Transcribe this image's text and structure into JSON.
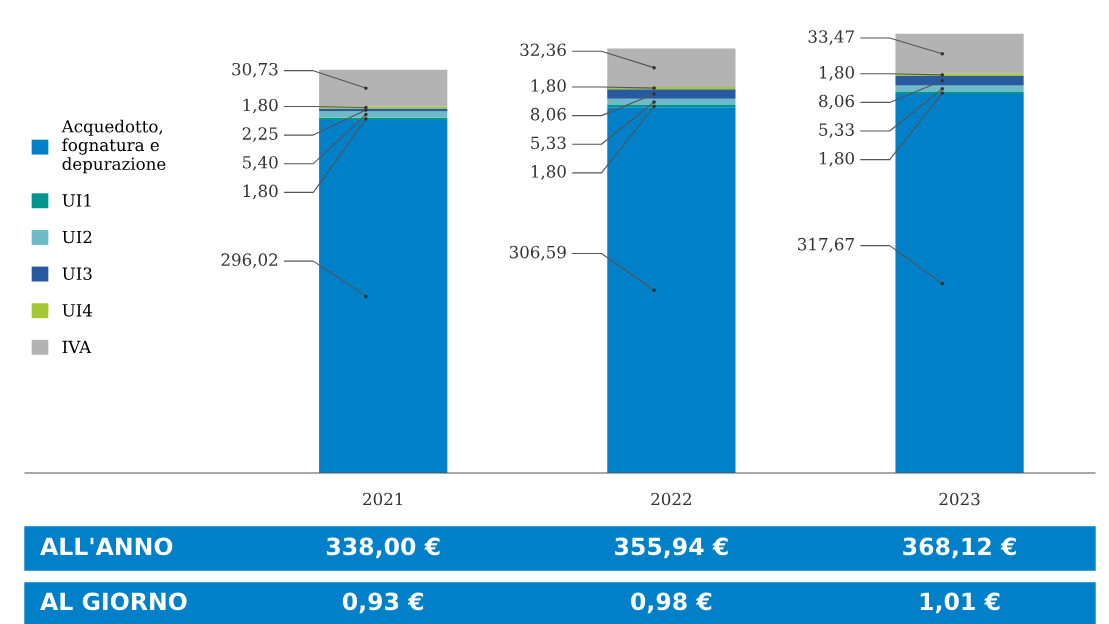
{
  "chart_data": {
    "type": "bar",
    "stacked": true,
    "categories": [
      "2021",
      "2022",
      "2023"
    ],
    "series": [
      {
        "name": "Acquedotto,\nfognatura e\ndepurazione",
        "color": "#0080c8",
        "values": [
          296.02,
          306.59,
          317.67
        ],
        "value_labels": [
          "296,02",
          "306,59",
          "317,67"
        ]
      },
      {
        "name": "UI1",
        "color": "#00968f",
        "values": [
          1.8,
          1.8,
          1.8
        ],
        "value_labels": [
          "1,80",
          "1,80",
          "1,80"
        ]
      },
      {
        "name": "UI2",
        "color": "#6dbac9",
        "values": [
          5.4,
          5.33,
          5.33
        ],
        "value_labels": [
          "5,40",
          "5,33",
          "5,33"
        ]
      },
      {
        "name": "UI3",
        "color": "#275a9e",
        "values": [
          2.25,
          8.06,
          8.06
        ],
        "value_labels": [
          "2,25",
          "8,06",
          "8,06"
        ]
      },
      {
        "name": "UI4",
        "color": "#a5c733",
        "values": [
          1.8,
          1.8,
          1.8
        ],
        "value_labels": [
          "1,80",
          "1,80",
          "1,80"
        ]
      },
      {
        "name": "IVA",
        "color": "#b3b3b3",
        "values": [
          30.73,
          32.36,
          33.47
        ],
        "value_labels": [
          "30,73",
          "32,36",
          "33,47"
        ]
      }
    ],
    "totals": [
      "338,00 €",
      "355,94 €",
      "368,12 €"
    ],
    "annotations": [
      "ALL'ANNO",
      "AL GIORNO",
      "0,93 €",
      "0,98 €",
      "1,01 €"
    ],
    "legend": "left",
    "grid": false
  }
}
